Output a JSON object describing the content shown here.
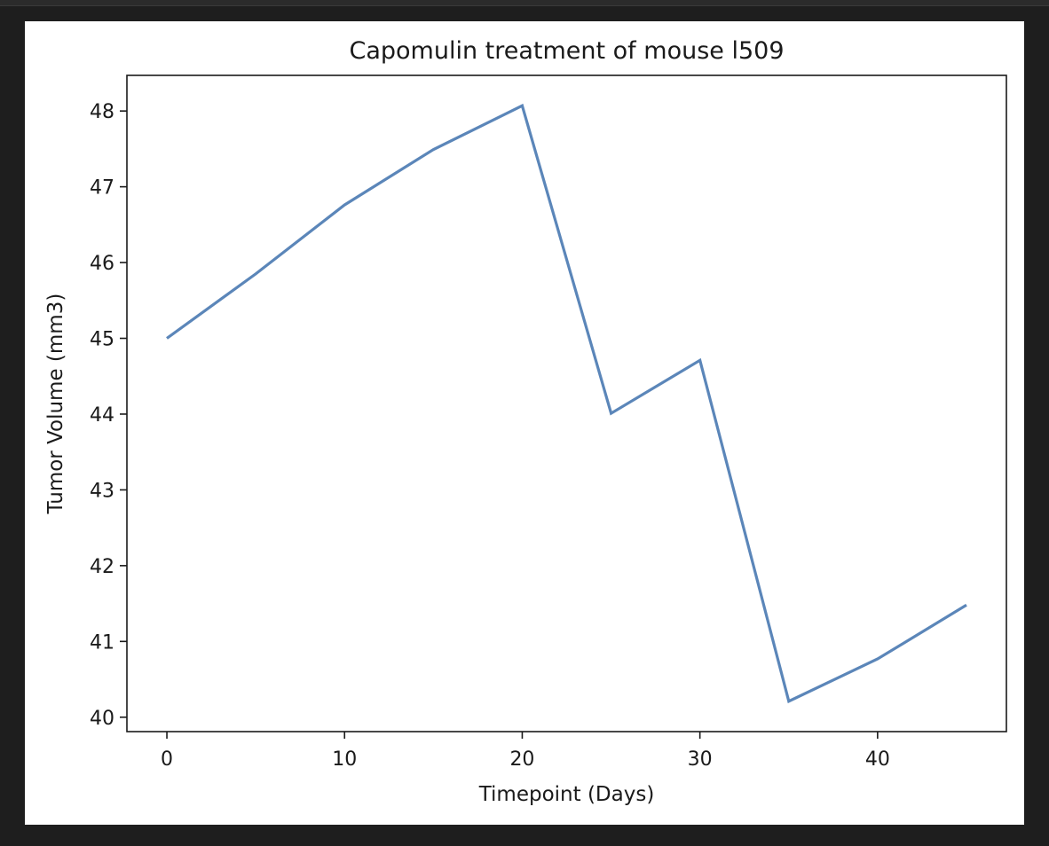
{
  "chart_data": {
    "type": "line",
    "title": "Capomulin treatment of mouse l509",
    "xlabel": "Timepoint (Days)",
    "ylabel": "Tumor Volume (mm3)",
    "xlim": [
      -2.25,
      47.25
    ],
    "ylim": [
      39.81,
      48.47
    ],
    "xticks": [
      0,
      10,
      20,
      30,
      40
    ],
    "yticks": [
      40,
      41,
      42,
      43,
      44,
      45,
      46,
      47,
      48
    ],
    "grid": false,
    "color": "#5b86b9",
    "series": [
      {
        "x": [
          0,
          5,
          10,
          15,
          20,
          25,
          30,
          35,
          40,
          45
        ],
        "values": [
          45.0,
          45.85,
          46.76,
          47.49,
          48.07,
          44.01,
          44.71,
          40.21,
          40.77,
          41.48
        ]
      }
    ]
  }
}
